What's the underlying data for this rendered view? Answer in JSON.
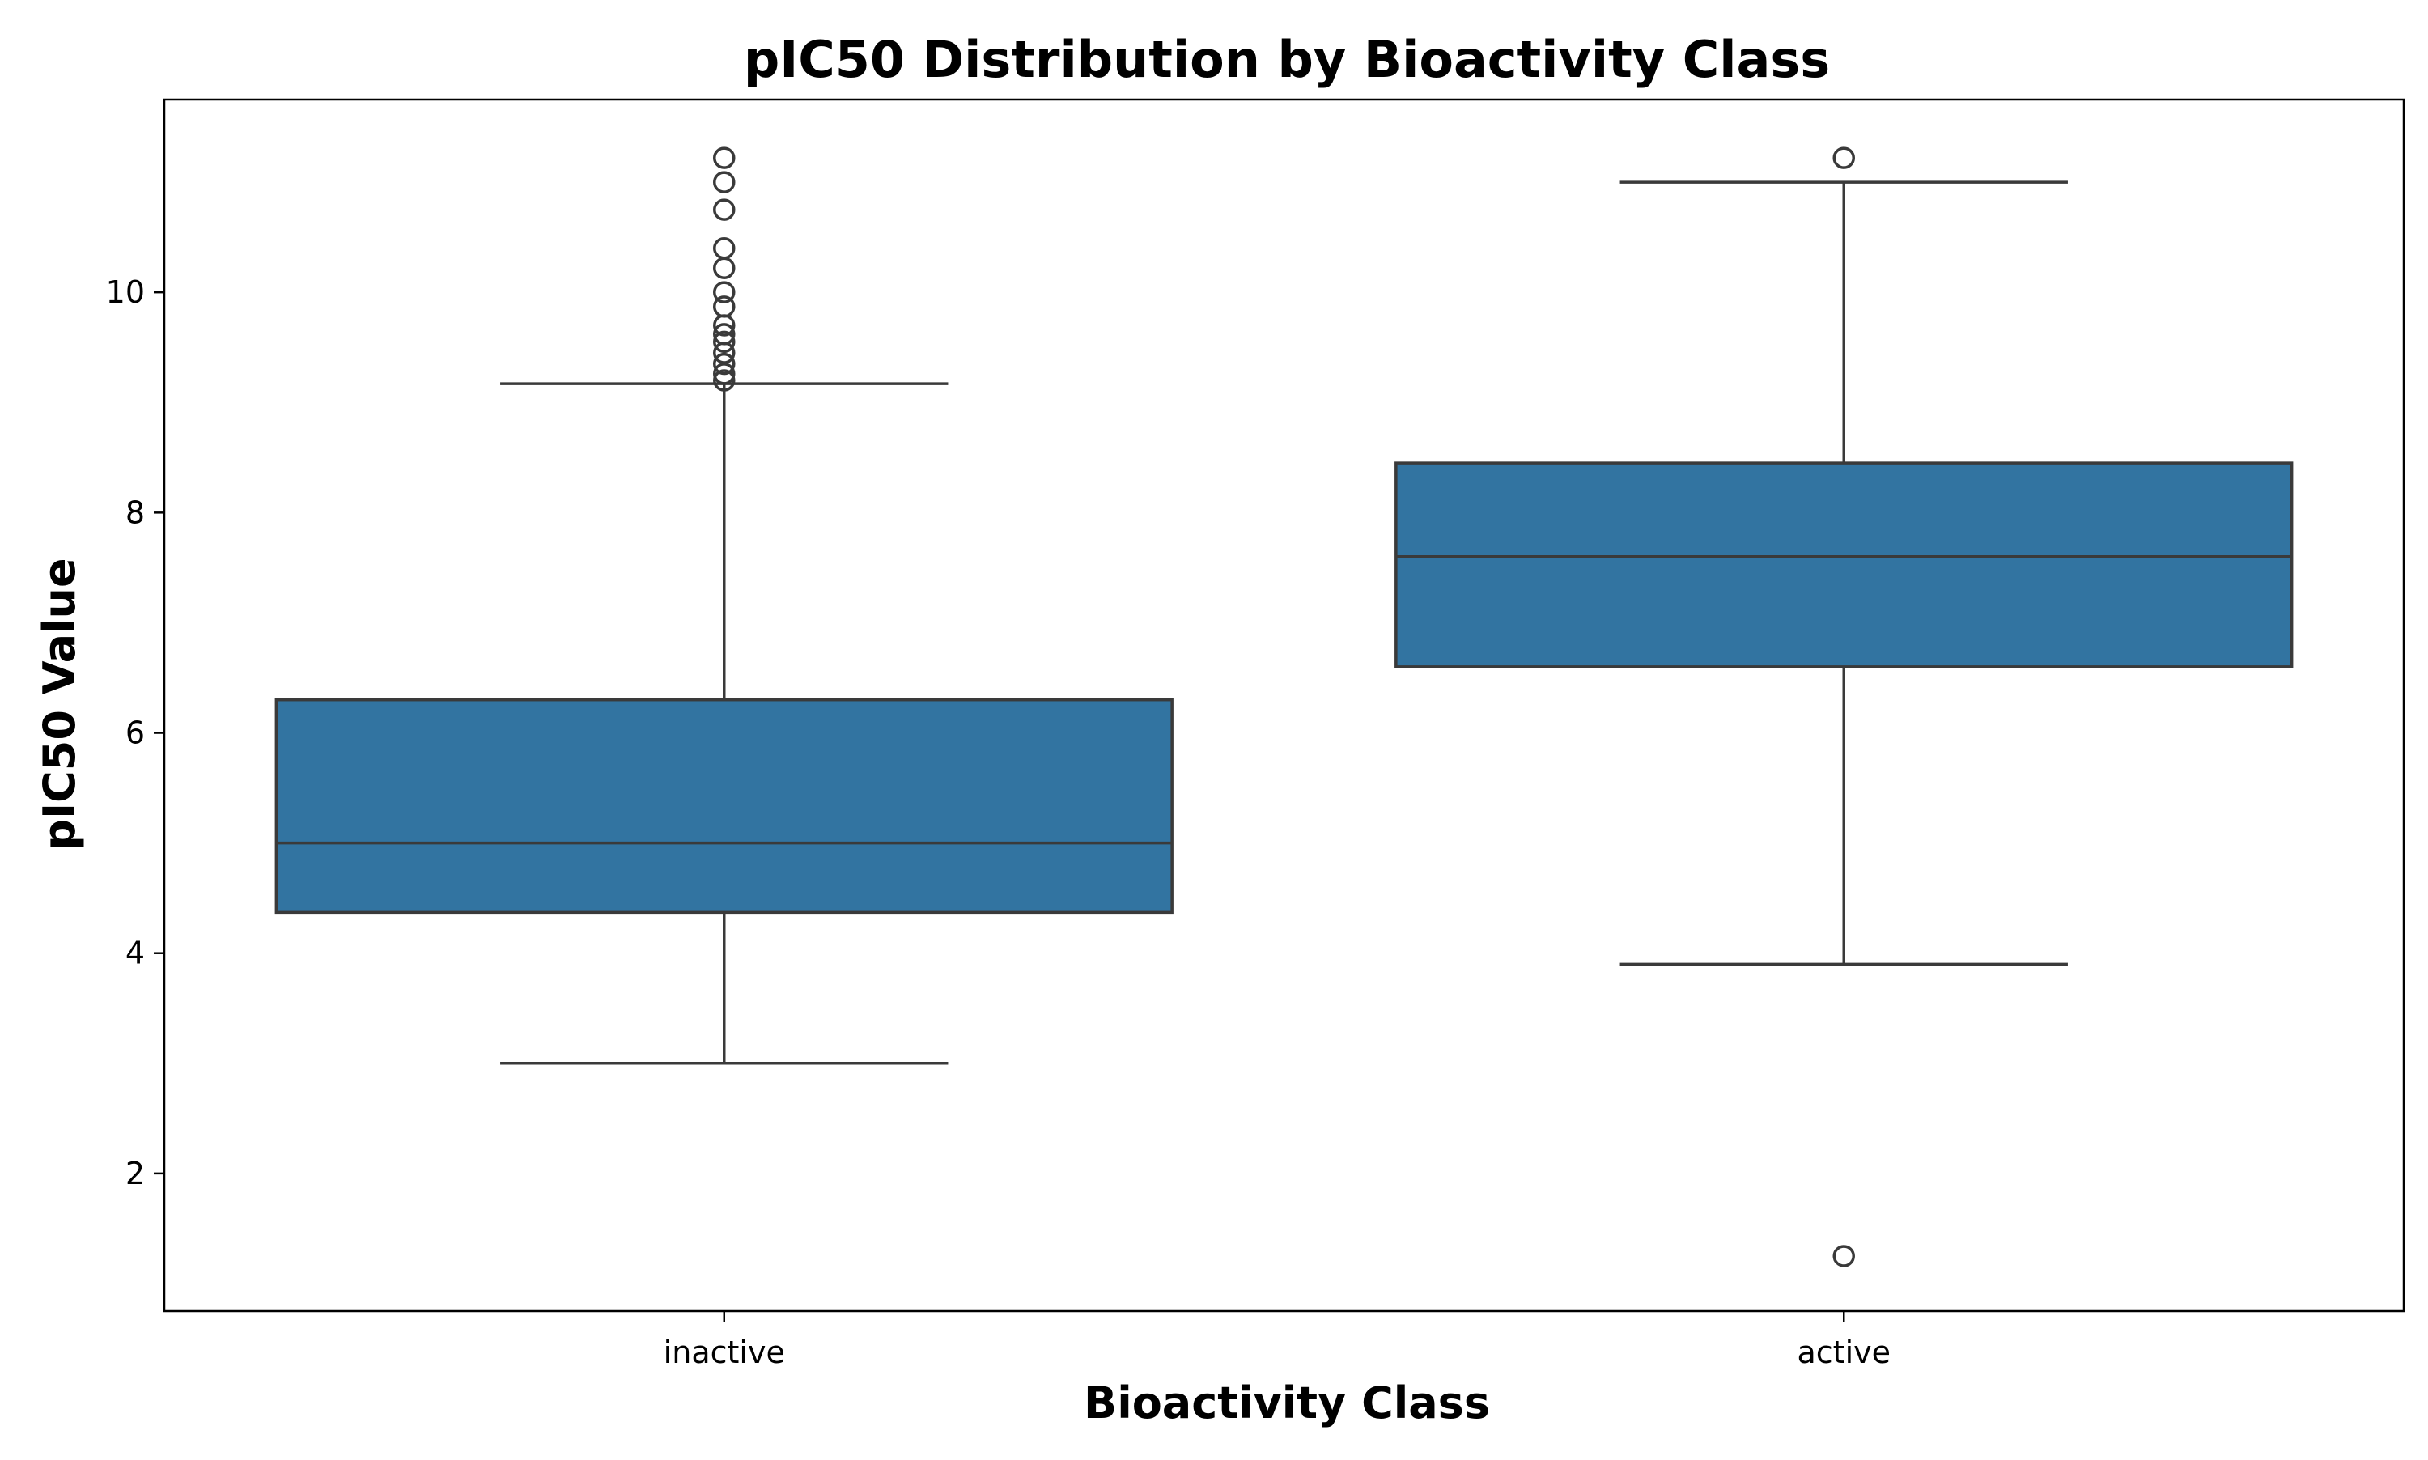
{
  "chart_data": {
    "type": "box",
    "title": "pIC50 Distribution by Bioactivity Class",
    "xlabel": "Bioactivity Class",
    "ylabel": "pIC50 Value",
    "ylim": [
      0.75,
      11.75
    ],
    "yticks": [
      2,
      4,
      6,
      8,
      10
    ],
    "categories": [
      "inactive",
      "active"
    ],
    "grid": false,
    "box_color": "#3274a1",
    "line_color": "#3a3a3a",
    "boxes": [
      {
        "category": "inactive",
        "whislo": 3.0,
        "q1": 4.37,
        "median": 5.0,
        "q3": 6.3,
        "whishi": 9.17,
        "fliers": [
          9.2,
          9.26,
          9.35,
          9.45,
          9.55,
          9.62,
          9.7,
          9.87,
          10.0,
          10.22,
          10.4,
          10.75,
          11.0,
          11.22
        ]
      },
      {
        "category": "active",
        "whislo": 3.9,
        "q1": 6.6,
        "median": 7.6,
        "q3": 8.45,
        "whishi": 11.0,
        "fliers": [
          11.22,
          1.25
        ]
      }
    ]
  }
}
